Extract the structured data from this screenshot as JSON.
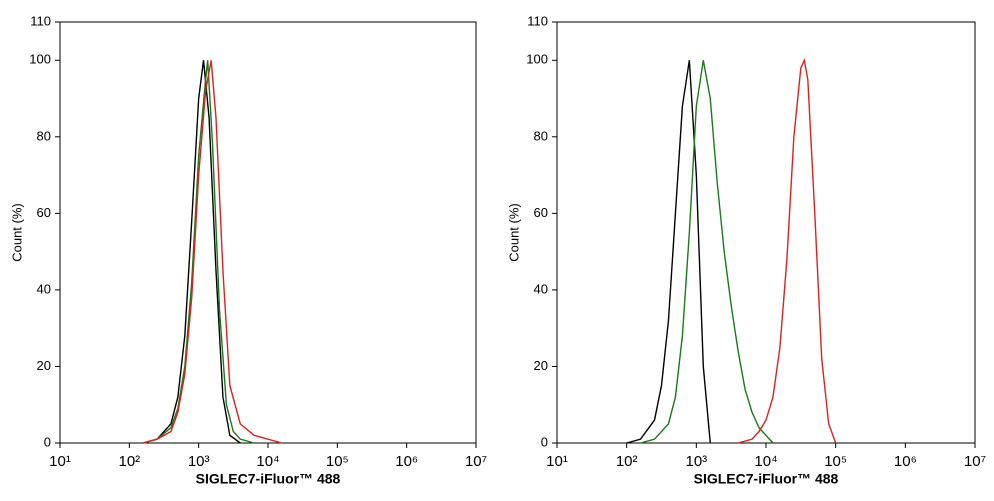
{
  "chart_data": [
    {
      "type": "line",
      "x_label": "SIGLEC7-iFluor™ 488",
      "y_label": "Count  (%)",
      "x_log": true,
      "xlim": [
        10,
        10000000
      ],
      "xticks": [
        {
          "value": 10,
          "label": "10¹"
        },
        {
          "value": 100,
          "label": "10²"
        },
        {
          "value": 1000,
          "label": "10³"
        },
        {
          "value": 10000,
          "label": "10⁴"
        },
        {
          "value": 100000,
          "label": "10⁵"
        },
        {
          "value": 1000000,
          "label": "10⁶"
        },
        {
          "value": 10000000,
          "label": "10⁷"
        }
      ],
      "ylim": [
        0,
        110
      ],
      "yticks": [
        0,
        20,
        40,
        60,
        80,
        100,
        110
      ],
      "series": [
        {
          "color": "#000000",
          "x": [
            158,
            251,
            398,
            501,
            631,
            794,
            1000,
            1175,
            1413,
            1778,
            2239,
            2818,
            3981
          ],
          "values": [
            0,
            1,
            5,
            12,
            28,
            58,
            90,
            100,
            85,
            45,
            12,
            2,
            0
          ]
        },
        {
          "color": "#1a7a1a",
          "x": [
            158,
            251,
            398,
            501,
            631,
            794,
            1000,
            1259,
            1349,
            1585,
            1995,
            2512,
            3162,
            3981,
            6310
          ],
          "values": [
            0,
            1,
            4,
            9,
            20,
            42,
            75,
            95,
            100,
            78,
            35,
            10,
            3,
            1,
            0
          ]
        },
        {
          "color": "#e0201a",
          "x": [
            158,
            251,
            398,
            501,
            631,
            794,
            1000,
            1259,
            1514,
            1778,
            2239,
            2818,
            3981,
            6310,
            10000,
            15849
          ],
          "values": [
            0,
            1,
            3,
            8,
            18,
            38,
            70,
            92,
            100,
            85,
            45,
            15,
            5,
            2,
            1,
            0
          ]
        }
      ]
    },
    {
      "type": "line",
      "x_label": "SIGLEC7-iFluor™ 488",
      "y_label": "Count  (%)",
      "x_log": true,
      "xlim": [
        10,
        10000000
      ],
      "xticks": [
        {
          "value": 10,
          "label": "10¹"
        },
        {
          "value": 100,
          "label": "10²"
        },
        {
          "value": 1000,
          "label": "10³"
        },
        {
          "value": 10000,
          "label": "10⁴"
        },
        {
          "value": 100000,
          "label": "10⁵"
        },
        {
          "value": 1000000,
          "label": "10⁶"
        },
        {
          "value": 10000000,
          "label": "10⁷"
        }
      ],
      "ylim": [
        0,
        110
      ],
      "yticks": [
        0,
        20,
        40,
        60,
        80,
        100,
        110
      ],
      "series": [
        {
          "color": "#000000",
          "x": [
            100,
            158,
            251,
            316,
            398,
            501,
            631,
            794,
            1000,
            1259,
            1585
          ],
          "values": [
            0,
            1,
            6,
            15,
            32,
            60,
            88,
            100,
            70,
            20,
            0
          ]
        },
        {
          "color": "#1a7a1a",
          "x": [
            158,
            251,
            398,
            501,
            631,
            794,
            1000,
            1259,
            1585,
            1995,
            2512,
            3162,
            3981,
            5012,
            6310,
            7943,
            10000,
            12589
          ],
          "values": [
            0,
            1,
            5,
            12,
            28,
            55,
            88,
            100,
            90,
            68,
            50,
            36,
            24,
            14,
            8,
            4,
            2,
            0
          ]
        },
        {
          "color": "#e0201a",
          "x": [
            3981,
            6310,
            7943,
            10000,
            12589,
            15849,
            19953,
            25119,
            31623,
            35481,
            39811,
            50119,
            63096,
            79433,
            100000
          ],
          "values": [
            0,
            1,
            3,
            6,
            12,
            25,
            48,
            80,
            98,
            100,
            95,
            60,
            22,
            5,
            0
          ]
        }
      ]
    }
  ]
}
